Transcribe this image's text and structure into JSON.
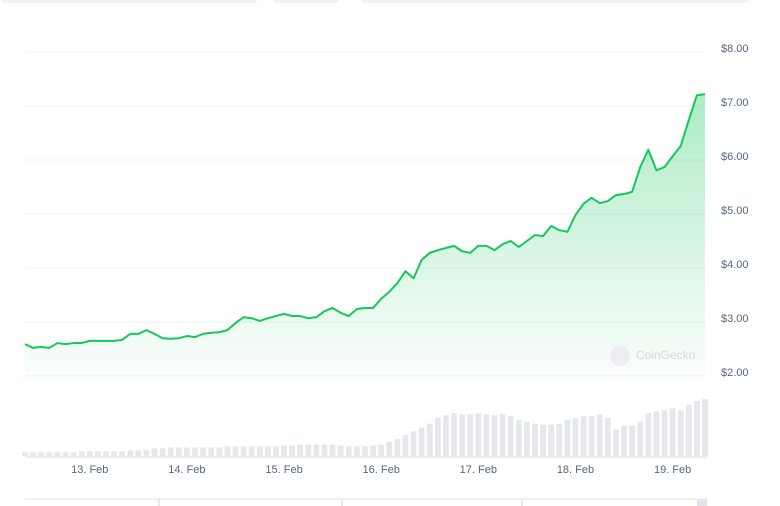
{
  "chart_data": {
    "type": "line",
    "watermark": "CoinGecko",
    "categories": [
      null,
      null,
      null,
      null,
      null,
      null,
      null,
      null,
      "13. Feb",
      null,
      null,
      null,
      null,
      null,
      null,
      null,
      null,
      null,
      null,
      null,
      "14. Feb",
      null,
      null,
      null,
      null,
      null,
      null,
      null,
      null,
      null,
      null,
      null,
      "15. Feb",
      null,
      null,
      null,
      null,
      null,
      null,
      null,
      null,
      null,
      null,
      null,
      "16. Feb",
      null,
      null,
      null,
      null,
      null,
      null,
      null,
      null,
      null,
      null,
      null,
      "17. Feb",
      null,
      null,
      null,
      null,
      null,
      null,
      null,
      null,
      null,
      null,
      null,
      "18. Feb",
      null,
      null,
      null,
      null,
      null,
      null,
      null,
      null,
      null,
      null,
      null,
      "19. Feb",
      null,
      null,
      null,
      null
    ],
    "series": [
      {
        "name": "Price",
        "color": "#16c75b",
        "values": [
          2.59,
          2.52,
          2.54,
          2.52,
          2.61,
          2.59,
          2.61,
          2.61,
          2.65,
          2.65,
          2.65,
          2.65,
          2.67,
          2.78,
          2.78,
          2.85,
          2.78,
          2.7,
          2.69,
          2.7,
          2.74,
          2.72,
          2.78,
          2.8,
          2.81,
          2.85,
          2.98,
          3.09,
          3.07,
          3.02,
          3.07,
          3.11,
          3.15,
          3.11,
          3.11,
          3.07,
          3.09,
          3.2,
          3.26,
          3.17,
          3.11,
          3.24,
          3.26,
          3.26,
          3.43,
          3.56,
          3.72,
          3.94,
          3.81,
          4.15,
          4.28,
          4.33,
          4.37,
          4.41,
          4.31,
          4.28,
          4.41,
          4.41,
          4.33,
          4.44,
          4.5,
          4.39,
          4.5,
          4.61,
          4.59,
          4.78,
          4.7,
          4.67,
          4.98,
          5.19,
          5.3,
          5.2,
          5.24,
          5.35,
          5.37,
          5.41,
          5.87,
          6.19,
          5.81,
          5.87,
          6.07,
          6.26,
          6.74,
          7.2,
          7.22
        ]
      },
      {
        "name": "Volume",
        "color": "#e4e7eb",
        "axis": "y2",
        "values": [
          4,
          4,
          4,
          4,
          4,
          4,
          4,
          5,
          5,
          5,
          5,
          5,
          5,
          6,
          6,
          6,
          8,
          8,
          9,
          9,
          9,
          9,
          9,
          9,
          9,
          10,
          10,
          10,
          10,
          10,
          10,
          10,
          11,
          11,
          12,
          12,
          12,
          12,
          12,
          11,
          10,
          10,
          10,
          11,
          12,
          15,
          18,
          22,
          26,
          30,
          34,
          40,
          43,
          45,
          44,
          44,
          45,
          44,
          43,
          44,
          42,
          38,
          36,
          34,
          33,
          33,
          34,
          38,
          40,
          42,
          42,
          44,
          40,
          28,
          32,
          32,
          36,
          45,
          47,
          48,
          50,
          48,
          54,
          58,
          60
        ]
      }
    ],
    "ylim": [
      2,
      8
    ],
    "yticks": [
      {
        "value": 2,
        "label": "$2.00"
      },
      {
        "value": 3,
        "label": "$3.00"
      },
      {
        "value": 4,
        "label": "$4.00"
      },
      {
        "value": 5,
        "label": "$5.00"
      },
      {
        "value": 6,
        "label": "$6.00"
      },
      {
        "value": 7,
        "label": "$7.00"
      },
      {
        "value": 8,
        "label": "$8.00"
      }
    ],
    "y2lim": [
      0,
      80
    ],
    "grid": true
  }
}
